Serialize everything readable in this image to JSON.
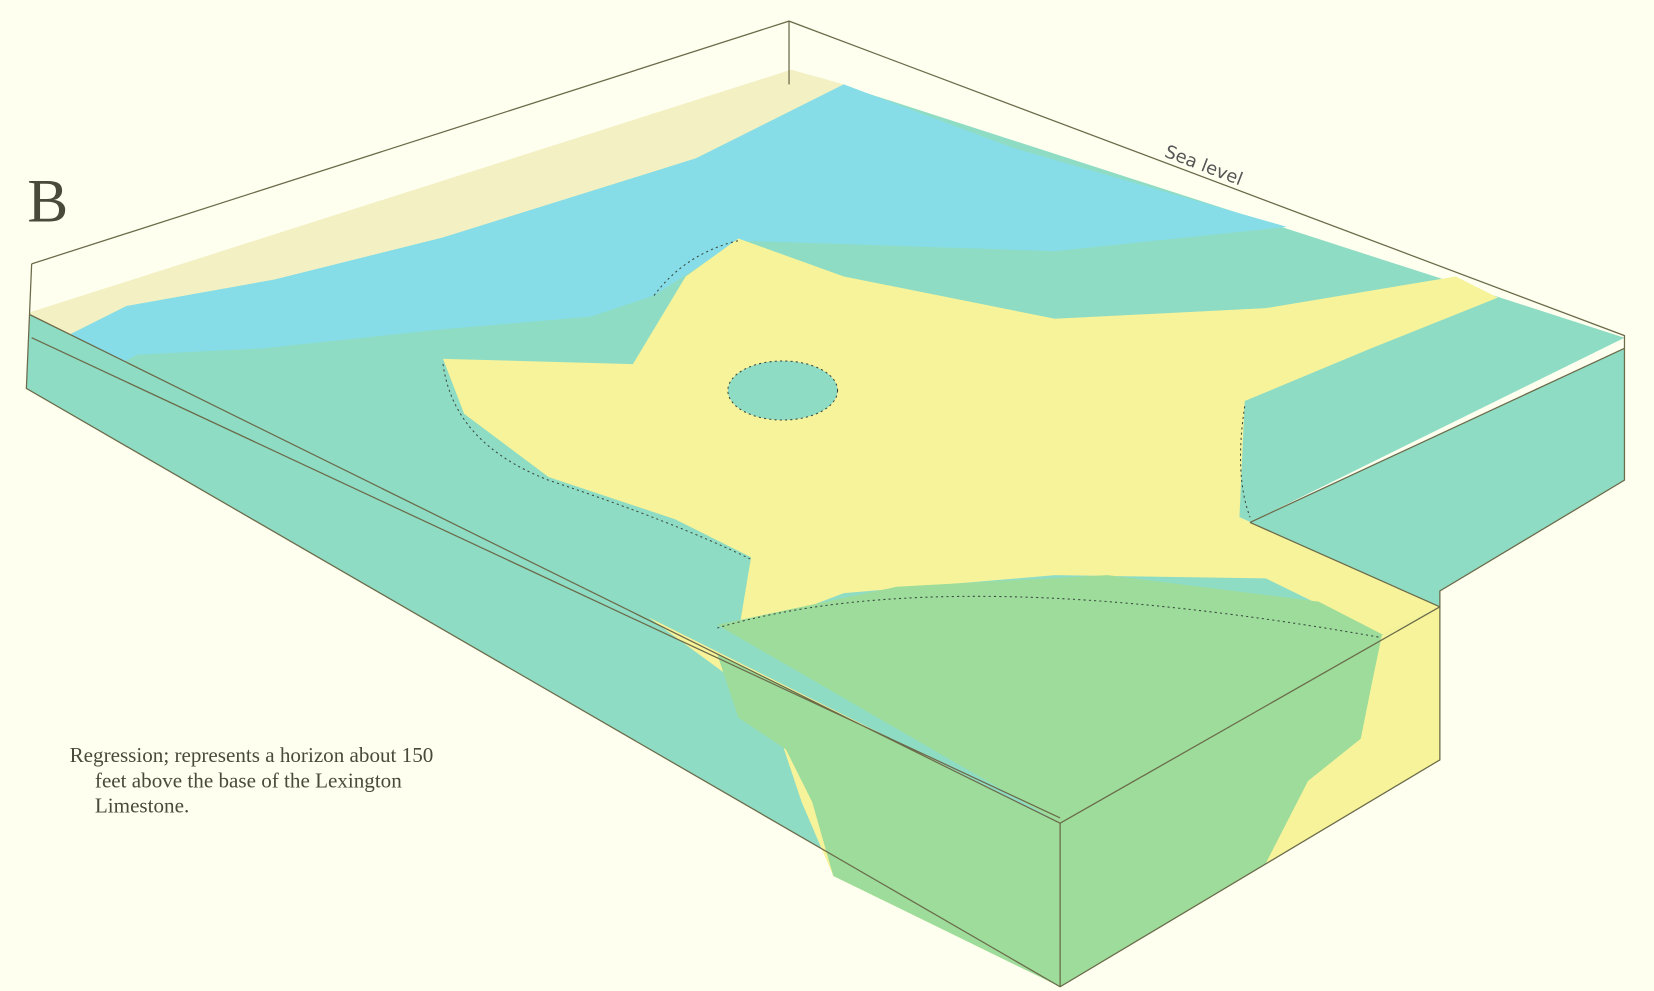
{
  "panel_label": "B",
  "sea_level_label": "Sea level",
  "caption": {
    "lines": [
      "Regression; represents a horizon about 150",
      "feet above the base of the Lexington",
      "Limestone."
    ]
  }
}
